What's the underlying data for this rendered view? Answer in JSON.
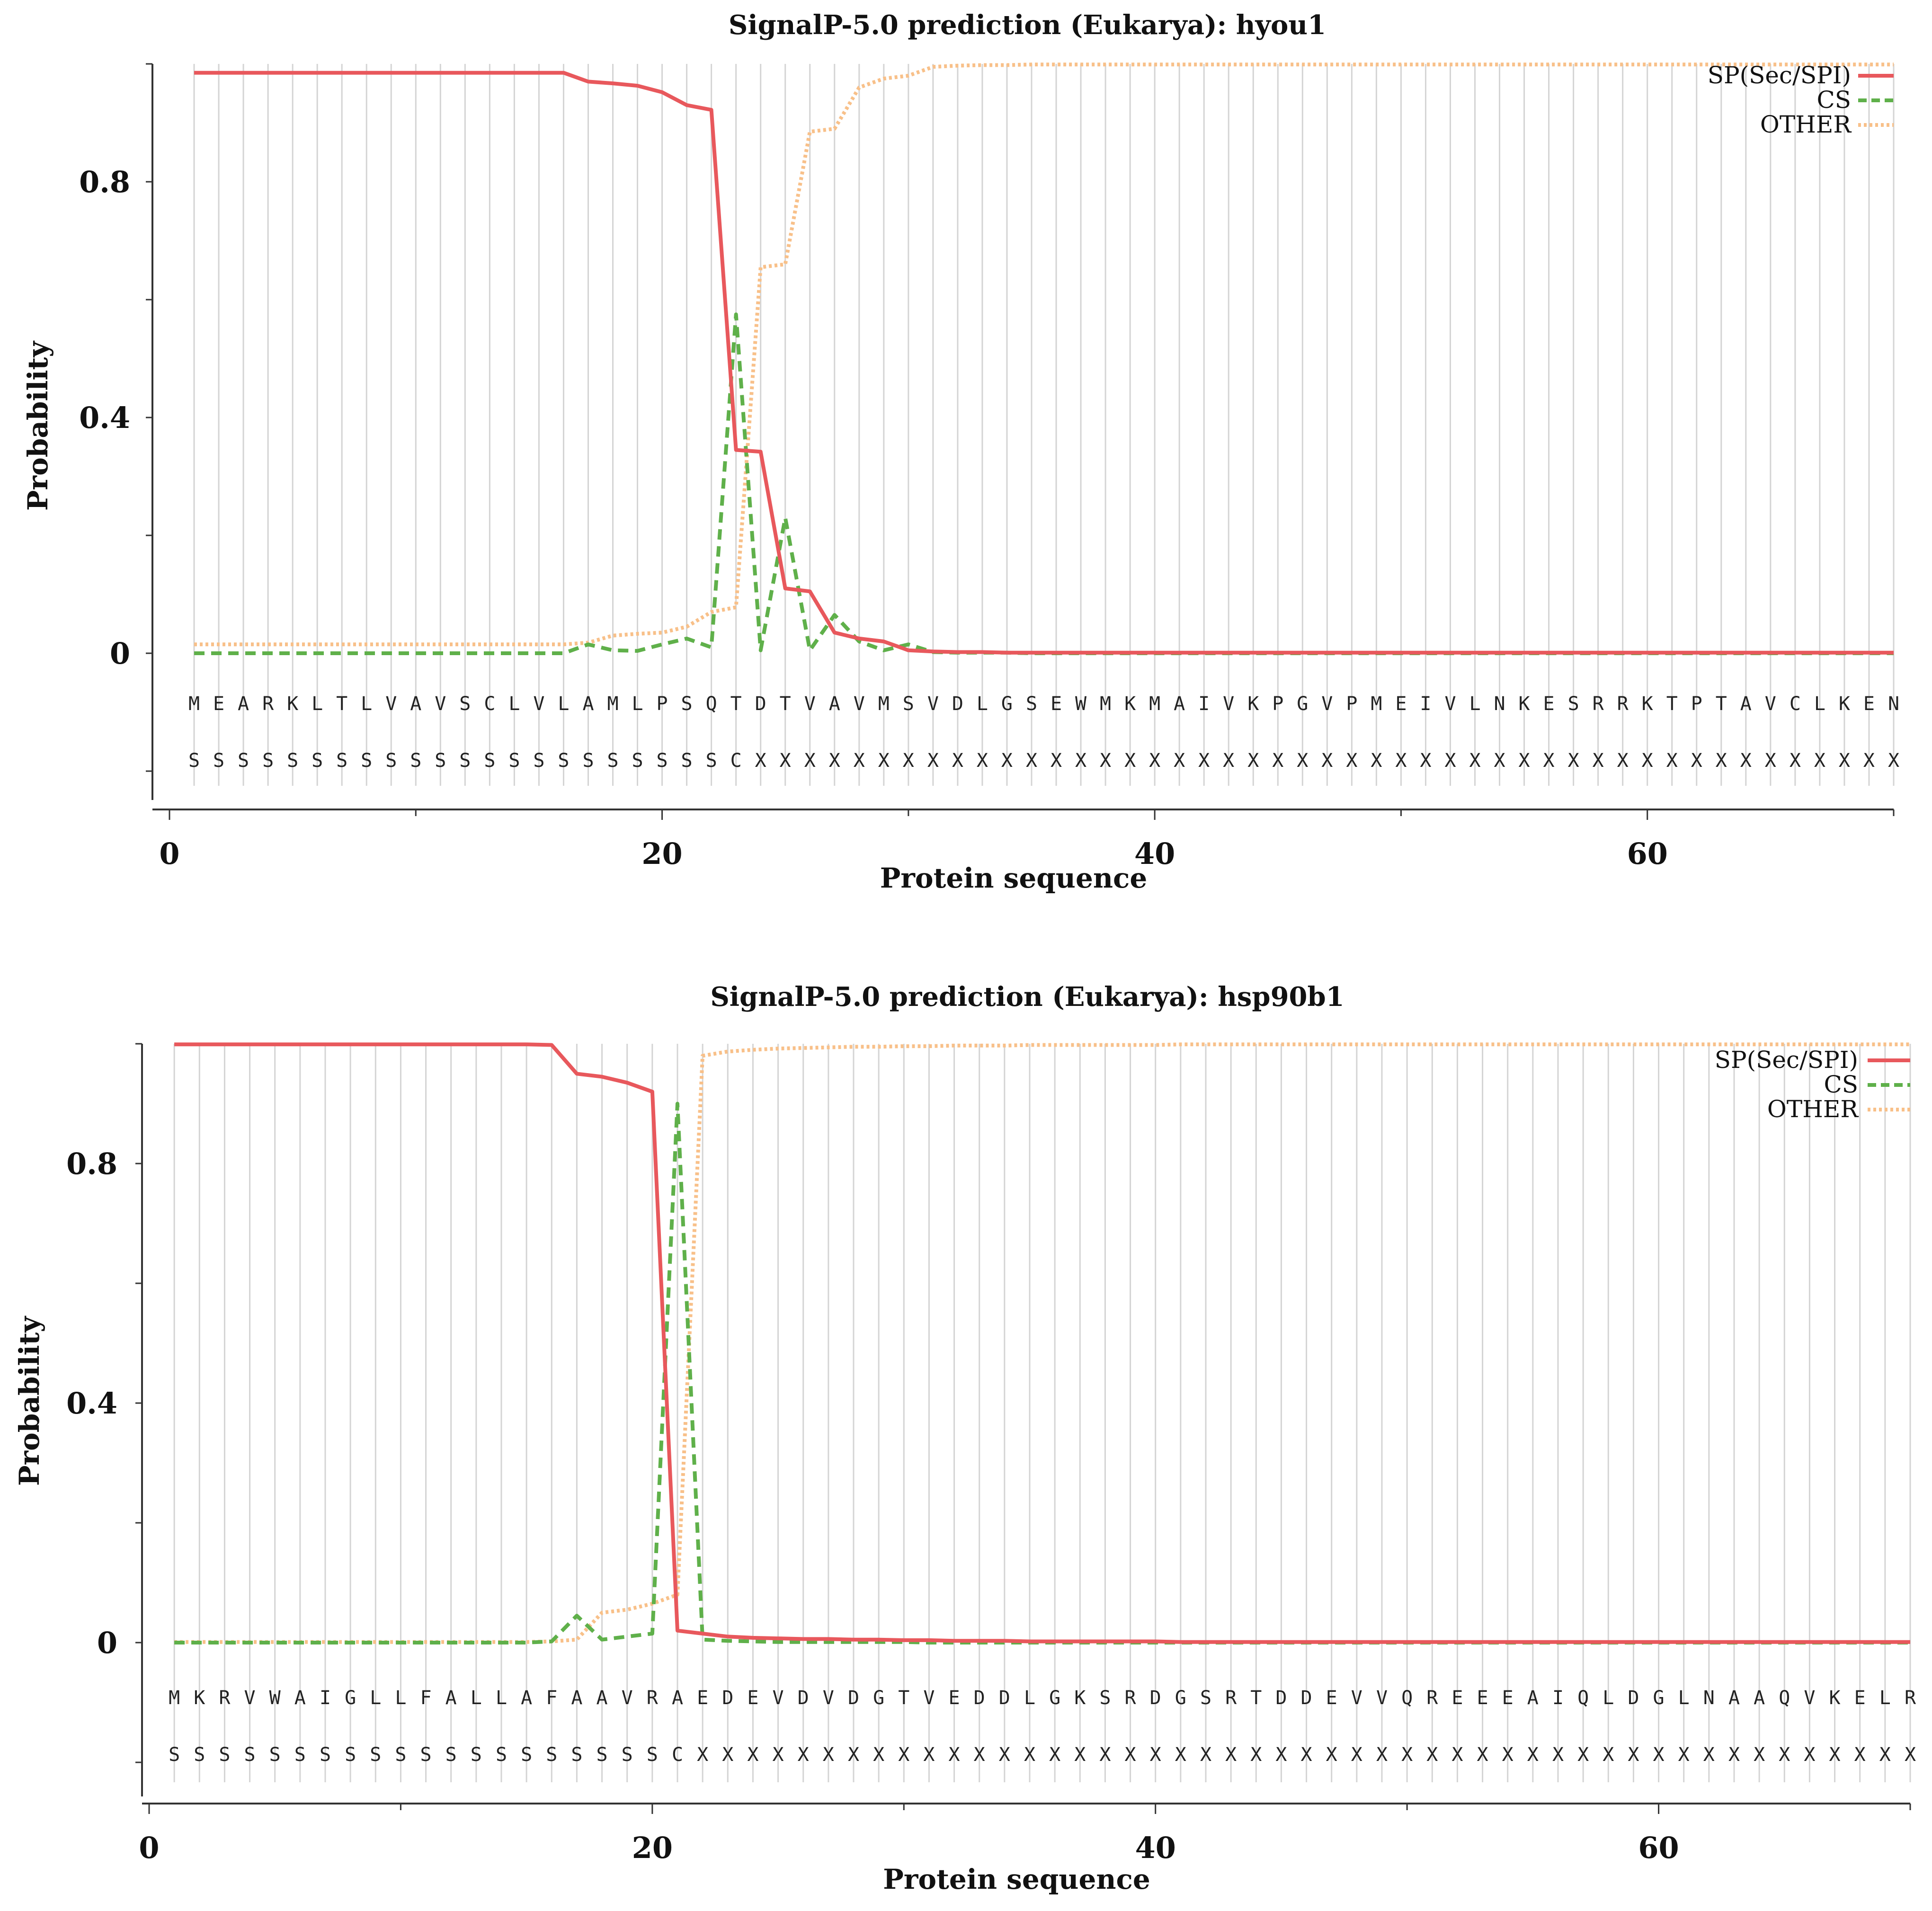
{
  "colors": {
    "sp": "#e8585c",
    "cs": "#5fb04a",
    "other": "#f8c089",
    "grid": "#d4d4d4",
    "axis": "#333333"
  },
  "chart_data": [
    {
      "type": "line",
      "title": "SignalP-5.0 prediction (Eukarya): hyou1",
      "xlabel": "Protein sequence",
      "ylabel": "Probability",
      "xlim": [
        0,
        70
      ],
      "ylim": [
        -0.25,
        1.0
      ],
      "xticks": [
        0,
        20,
        40,
        60
      ],
      "xtick_labels": [
        "0",
        "20",
        "40",
        "60"
      ],
      "yticks": [
        0,
        0.4,
        0.8
      ],
      "ytick_labels": [
        "0",
        "0.4",
        "0.8"
      ],
      "grid": true,
      "legend_position": "top-right",
      "sequence": [
        "M",
        "E",
        "A",
        "R",
        "K",
        "L",
        "T",
        "L",
        "V",
        "A",
        "V",
        "S",
        "C",
        "L",
        "V",
        "L",
        "A",
        "M",
        "L",
        "P",
        "S",
        "Q",
        "T",
        "D",
        "T",
        "V",
        "A",
        "V",
        "M",
        "S",
        "V",
        "D",
        "L",
        "G",
        "S",
        "E",
        "W",
        "M",
        "K",
        "M",
        "A",
        "I",
        "V",
        "K",
        "P",
        "G",
        "V",
        "P",
        "M",
        "E",
        "I",
        "V",
        "L",
        "N",
        "K",
        "E",
        "S",
        "R",
        "R",
        "K",
        "T",
        "P",
        "T",
        "A",
        "V",
        "C",
        "L",
        "K",
        "E",
        "N"
      ],
      "annotation": [
        "S",
        "S",
        "S",
        "S",
        "S",
        "S",
        "S",
        "S",
        "S",
        "S",
        "S",
        "S",
        "S",
        "S",
        "S",
        "S",
        "S",
        "S",
        "S",
        "S",
        "S",
        "S",
        "C",
        "X",
        "X",
        "X",
        "X",
        "X",
        "X",
        "X",
        "X",
        "X",
        "X",
        "X",
        "X",
        "X",
        "X",
        "X",
        "X",
        "X",
        "X",
        "X",
        "X",
        "X",
        "X",
        "X",
        "X",
        "X",
        "X",
        "X",
        "X",
        "X",
        "X",
        "X",
        "X",
        "X",
        "X",
        "X",
        "X",
        "X",
        "X",
        "X",
        "X",
        "X",
        "X",
        "X",
        "X",
        "X",
        "X",
        "X"
      ],
      "x": [
        1,
        2,
        3,
        4,
        5,
        6,
        7,
        8,
        9,
        10,
        11,
        12,
        13,
        14,
        15,
        16,
        17,
        18,
        19,
        20,
        21,
        22,
        23,
        24,
        25,
        26,
        27,
        28,
        29,
        30,
        31,
        32,
        33,
        34,
        35,
        36,
        37,
        38,
        39,
        40,
        41,
        42,
        43,
        44,
        45,
        46,
        47,
        48,
        49,
        50,
        51,
        52,
        53,
        54,
        55,
        56,
        57,
        58,
        59,
        60,
        61,
        62,
        63,
        64,
        65,
        66,
        67,
        68,
        69,
        70
      ],
      "series": [
        {
          "name": "SP(Sec/SPI)",
          "style": "solid",
          "values": [
            0.985,
            0.985,
            0.985,
            0.985,
            0.985,
            0.985,
            0.985,
            0.985,
            0.985,
            0.985,
            0.985,
            0.985,
            0.985,
            0.985,
            0.985,
            0.985,
            0.97,
            0.967,
            0.963,
            0.952,
            0.93,
            0.922,
            0.345,
            0.342,
            0.11,
            0.105,
            0.035,
            0.025,
            0.02,
            0.005,
            0.003,
            0.002,
            0.002,
            0.001,
            0.001,
            0.001,
            0.001,
            0.001,
            0.001,
            0.001,
            0.001,
            0.001,
            0.001,
            0.001,
            0.001,
            0.001,
            0.001,
            0.001,
            0.001,
            0.001,
            0.001,
            0.001,
            0.001,
            0.001,
            0.001,
            0.001,
            0.001,
            0.001,
            0.001,
            0.001,
            0.001,
            0.001,
            0.001,
            0.001,
            0.001,
            0.001,
            0.001,
            0.001,
            0.001,
            0.001
          ]
        },
        {
          "name": "CS",
          "style": "dashed",
          "values": [
            0,
            0,
            0,
            0,
            0,
            0,
            0,
            0,
            0,
            0,
            0,
            0,
            0,
            0,
            0,
            0,
            0.015,
            0.005,
            0.004,
            0.015,
            0.025,
            0.01,
            0.575,
            0.005,
            0.23,
            0.005,
            0.065,
            0.02,
            0.005,
            0.015,
            0.002,
            0.001,
            0.001,
            0.001,
            0,
            0,
            0,
            0,
            0,
            0,
            0,
            0,
            0,
            0,
            0,
            0,
            0,
            0,
            0,
            0,
            0,
            0,
            0,
            0,
            0,
            0,
            0,
            0,
            0,
            0,
            0,
            0,
            0,
            0,
            0,
            0,
            0,
            0,
            0,
            0
          ]
        },
        {
          "name": "OTHER",
          "style": "dotted",
          "values": [
            0.015,
            0.015,
            0.015,
            0.015,
            0.015,
            0.015,
            0.015,
            0.015,
            0.015,
            0.015,
            0.015,
            0.015,
            0.015,
            0.015,
            0.015,
            0.015,
            0.018,
            0.03,
            0.033,
            0.035,
            0.045,
            0.07,
            0.078,
            0.655,
            0.66,
            0.885,
            0.89,
            0.96,
            0.975,
            0.98,
            0.995,
            0.997,
            0.998,
            0.998,
            0.999,
            0.999,
            0.999,
            0.999,
            0.999,
            0.999,
            0.999,
            0.999,
            0.999,
            0.999,
            0.999,
            0.999,
            0.999,
            0.999,
            0.999,
            0.999,
            0.999,
            0.999,
            0.999,
            0.999,
            0.999,
            0.999,
            0.999,
            0.999,
            0.999,
            0.999,
            0.999,
            0.999,
            0.999,
            0.999,
            0.999,
            0.999,
            0.999,
            0.999,
            0.999,
            0.999
          ]
        }
      ]
    },
    {
      "type": "line",
      "title": "SignalP-5.0 prediction (Eukarya): hsp90b1",
      "xlabel": "Protein sequence",
      "ylabel": "Probability",
      "xlim": [
        0,
        70
      ],
      "ylim": [
        -0.25,
        1.0
      ],
      "xticks": [
        0,
        20,
        40,
        60
      ],
      "xtick_labels": [
        "0",
        "20",
        "40",
        "60"
      ],
      "yticks": [
        0,
        0.4,
        0.8
      ],
      "ytick_labels": [
        "0",
        "0.4",
        "0.8"
      ],
      "grid": true,
      "legend_position": "top-right",
      "sequence": [
        "M",
        "K",
        "R",
        "V",
        "W",
        "A",
        "I",
        "G",
        "L",
        "L",
        "F",
        "A",
        "L",
        "L",
        "A",
        "F",
        "A",
        "A",
        "V",
        "R",
        "A",
        "E",
        "D",
        "E",
        "V",
        "D",
        "V",
        "D",
        "G",
        "T",
        "V",
        "E",
        "D",
        "D",
        "L",
        "G",
        "K",
        "S",
        "R",
        "D",
        "G",
        "S",
        "R",
        "T",
        "D",
        "D",
        "E",
        "V",
        "V",
        "Q",
        "R",
        "E",
        "E",
        "E",
        "A",
        "I",
        "Q",
        "L",
        "D",
        "G",
        "L",
        "N",
        "A",
        "A",
        "Q",
        "V",
        "K",
        "E",
        "L",
        "R"
      ],
      "annotation": [
        "S",
        "S",
        "S",
        "S",
        "S",
        "S",
        "S",
        "S",
        "S",
        "S",
        "S",
        "S",
        "S",
        "S",
        "S",
        "S",
        "S",
        "S",
        "S",
        "S",
        "C",
        "X",
        "X",
        "X",
        "X",
        "X",
        "X",
        "X",
        "X",
        "X",
        "X",
        "X",
        "X",
        "X",
        "X",
        "X",
        "X",
        "X",
        "X",
        "X",
        "X",
        "X",
        "X",
        "X",
        "X",
        "X",
        "X",
        "X",
        "X",
        "X",
        "X",
        "X",
        "X",
        "X",
        "X",
        "X",
        "X",
        "X",
        "X",
        "X",
        "X",
        "X",
        "X",
        "X",
        "X",
        "X",
        "X",
        "X",
        "X",
        "X"
      ],
      "x": [
        1,
        2,
        3,
        4,
        5,
        6,
        7,
        8,
        9,
        10,
        11,
        12,
        13,
        14,
        15,
        16,
        17,
        18,
        19,
        20,
        21,
        22,
        23,
        24,
        25,
        26,
        27,
        28,
        29,
        30,
        31,
        32,
        33,
        34,
        35,
        36,
        37,
        38,
        39,
        40,
        41,
        42,
        43,
        44,
        45,
        46,
        47,
        48,
        49,
        50,
        51,
        52,
        53,
        54,
        55,
        56,
        57,
        58,
        59,
        60,
        61,
        62,
        63,
        64,
        65,
        66,
        67,
        68,
        69,
        70
      ],
      "series": [
        {
          "name": "SP(Sec/SPI)",
          "style": "solid",
          "values": [
            0.999,
            0.999,
            0.999,
            0.999,
            0.999,
            0.999,
            0.999,
            0.999,
            0.999,
            0.999,
            0.999,
            0.999,
            0.999,
            0.999,
            0.999,
            0.998,
            0.95,
            0.945,
            0.935,
            0.92,
            0.02,
            0.015,
            0.01,
            0.008,
            0.007,
            0.006,
            0.006,
            0.005,
            0.005,
            0.004,
            0.004,
            0.003,
            0.003,
            0.003,
            0.002,
            0.002,
            0.002,
            0.002,
            0.002,
            0.002,
            0.001,
            0.001,
            0.001,
            0.001,
            0.001,
            0.001,
            0.001,
            0.001,
            0.001,
            0.001,
            0.001,
            0.001,
            0.001,
            0.001,
            0.001,
            0.001,
            0.001,
            0.001,
            0.001,
            0.001,
            0.001,
            0.001,
            0.001,
            0.001,
            0.001,
            0.001,
            0.001,
            0.001,
            0.001,
            0.001
          ]
        },
        {
          "name": "CS",
          "style": "dashed",
          "values": [
            0,
            0,
            0,
            0,
            0,
            0,
            0,
            0,
            0,
            0,
            0,
            0,
            0,
            0,
            0,
            0.002,
            0.045,
            0.005,
            0.01,
            0.015,
            0.9,
            0.005,
            0.003,
            0.002,
            0.001,
            0.001,
            0.001,
            0.001,
            0.001,
            0.001,
            0,
            0,
            0,
            0,
            0,
            0,
            0,
            0,
            0,
            0,
            0,
            0,
            0,
            0,
            0,
            0,
            0,
            0,
            0,
            0,
            0,
            0,
            0,
            0,
            0,
            0,
            0,
            0,
            0,
            0,
            0,
            0,
            0,
            0,
            0,
            0,
            0,
            0,
            0,
            0
          ]
        },
        {
          "name": "OTHER",
          "style": "dotted",
          "values": [
            0.001,
            0.001,
            0.001,
            0.001,
            0.001,
            0.001,
            0.001,
            0.001,
            0.001,
            0.001,
            0.001,
            0.001,
            0.001,
            0.001,
            0.001,
            0.002,
            0.005,
            0.05,
            0.055,
            0.065,
            0.08,
            0.98,
            0.987,
            0.99,
            0.992,
            0.993,
            0.994,
            0.995,
            0.995,
            0.996,
            0.996,
            0.997,
            0.997,
            0.997,
            0.998,
            0.998,
            0.998,
            0.998,
            0.998,
            0.998,
            0.999,
            0.999,
            0.999,
            0.999,
            0.999,
            0.999,
            0.999,
            0.999,
            0.999,
            0.999,
            0.999,
            0.999,
            0.999,
            0.999,
            0.999,
            0.999,
            0.999,
            0.999,
            0.999,
            0.999,
            0.999,
            0.999,
            0.999,
            0.999,
            0.999,
            0.999,
            0.999,
            0.999,
            0.999,
            0.999
          ]
        }
      ]
    }
  ]
}
